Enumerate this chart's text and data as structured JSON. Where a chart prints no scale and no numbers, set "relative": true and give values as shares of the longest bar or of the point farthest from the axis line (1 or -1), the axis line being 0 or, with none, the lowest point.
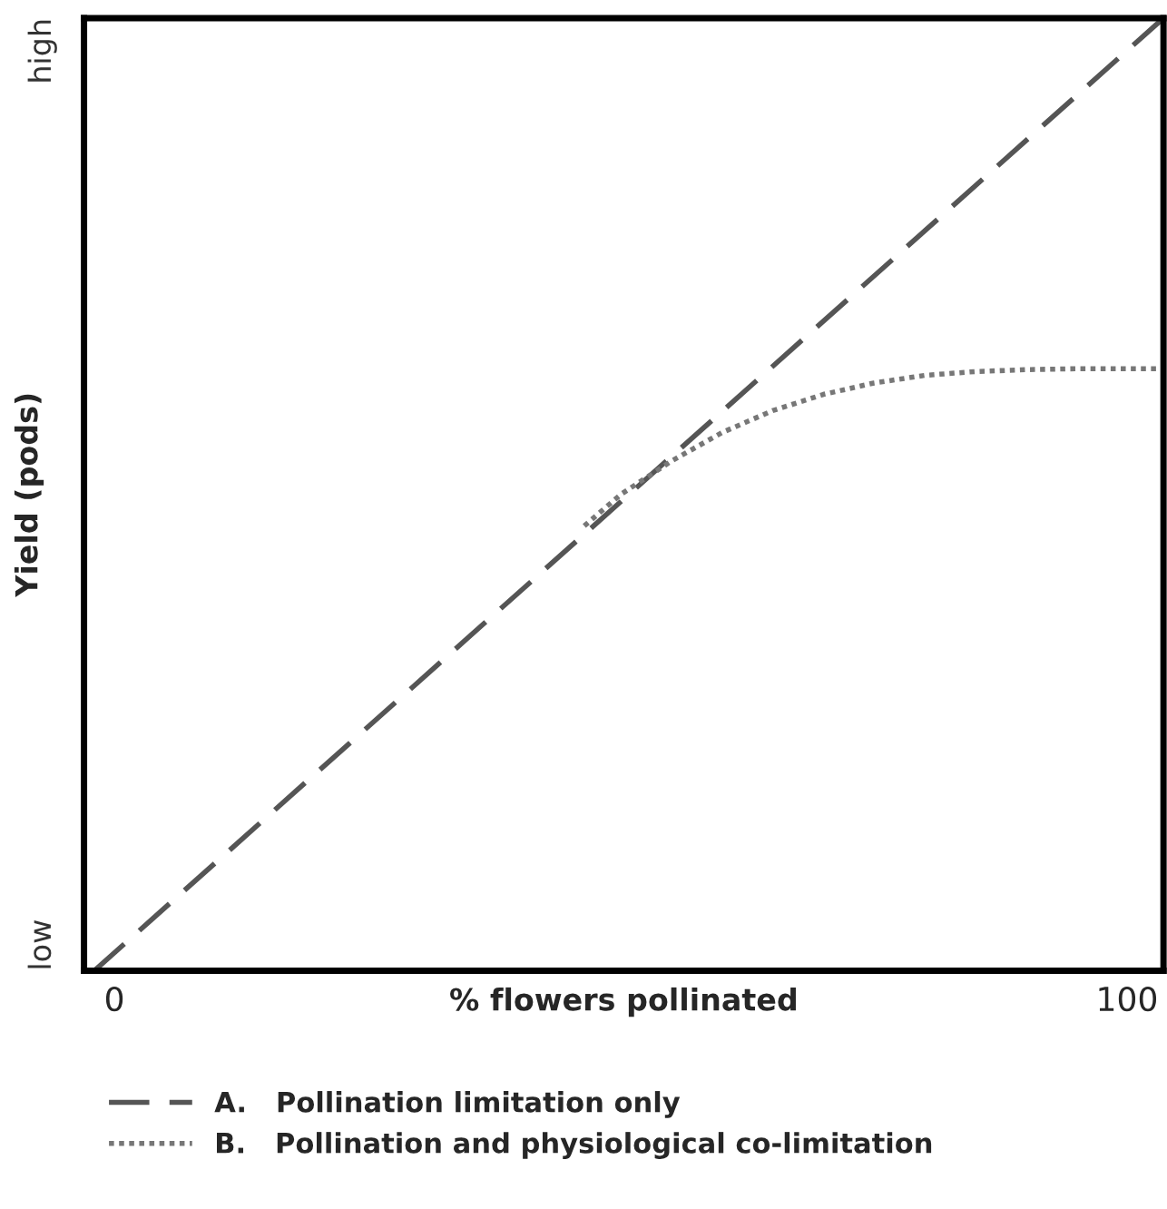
{
  "chart_data": {
    "type": "line",
    "relative": true,
    "xlabel": "% flowers pollinated",
    "ylabel": "Yield (pods)",
    "xlim": [
      -3,
      103.6
    ],
    "xticks": [
      0,
      100
    ],
    "annotations": [
      "low",
      "high"
    ],
    "series": [
      {
        "name": "A.   Pollination limitation only",
        "color": "#555555",
        "line_style": "dashed",
        "x": [
          -2,
          103.6
        ],
        "values": [
          0,
          1
        ]
      },
      {
        "name": "B.   Pollination and physiological co-limitation",
        "color": "#777777",
        "line_style": "dotted",
        "x": [
          46.4,
          50,
          55,
          60,
          65,
          70,
          75,
          80,
          85,
          90,
          95,
          103.6
        ],
        "values": [
          0.467,
          0.5,
          0.535,
          0.565,
          0.588,
          0.605,
          0.617,
          0.625,
          0.629,
          0.631,
          0.632,
          0.632
        ]
      }
    ],
    "grid": false,
    "legend": "bottom",
    "marker": "none"
  }
}
